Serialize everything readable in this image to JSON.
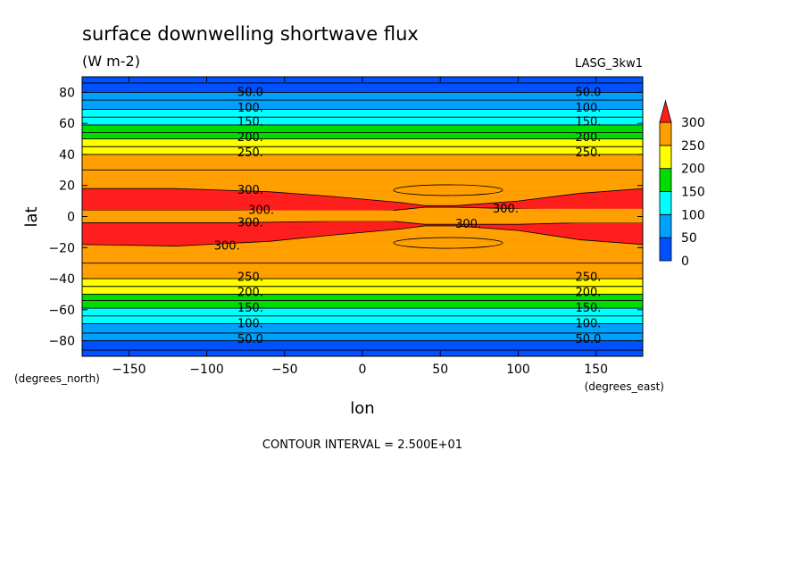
{
  "chart_data": {
    "type": "heatmap",
    "title": "surface downwelling shortwave flux",
    "units": "(W m-2)",
    "model_label": "LASG_3kw1",
    "xlabel": "lon",
    "ylabel": "lat",
    "x_units_label": "(degrees_east)",
    "y_units_label": "(degrees_north)",
    "xlim": [
      -180,
      180
    ],
    "ylim": [
      -90,
      90
    ],
    "x_ticks": [
      -150,
      -100,
      -50,
      0,
      50,
      100,
      150
    ],
    "y_ticks": [
      -80,
      -60,
      -40,
      -20,
      0,
      20,
      40,
      60,
      80
    ],
    "contour_interval_text": "CONTOUR INTERVAL = 2.500E+01",
    "colorbar": {
      "ticks": [
        "0",
        "50",
        "100",
        "150",
        "200",
        "250",
        "300"
      ],
      "extend": "max",
      "colors": [
        "#0050ff",
        "#00a0ff",
        "#00ffff",
        "#00dc00",
        "#ffff00",
        "#ffa000",
        "#ff1e1e"
      ]
    },
    "band_edges_north": [
      {
        "lat": 90,
        "value": 0
      },
      {
        "lat": 80,
        "value": 50
      },
      {
        "lat": 69,
        "value": 100
      },
      {
        "lat": 59,
        "value": 150
      },
      {
        "lat": 50,
        "value": 200
      },
      {
        "lat": 40,
        "value": 250
      },
      {
        "lat": 16,
        "value": 300
      }
    ],
    "band_edges_south": [
      {
        "lat": -90,
        "value": 0
      },
      {
        "lat": -80,
        "value": 50
      },
      {
        "lat": -69,
        "value": 100
      },
      {
        "lat": -59,
        "value": 150
      },
      {
        "lat": -50,
        "value": 200
      },
      {
        "lat": -40,
        "value": 250
      },
      {
        "lat": -16,
        "value": 300
      }
    ],
    "contour_labels": [
      {
        "text": "50.0",
        "lon": -72,
        "lat": 80
      },
      {
        "text": "100.",
        "lon": -72,
        "lat": 70
      },
      {
        "text": "150.",
        "lon": -72,
        "lat": 61
      },
      {
        "text": "200.",
        "lon": -72,
        "lat": 51
      },
      {
        "text": "250.",
        "lon": -72,
        "lat": 41
      },
      {
        "text": "300.",
        "lon": -72,
        "lat": 17
      },
      {
        "text": "300.",
        "lon": -65,
        "lat": 4
      },
      {
        "text": "300.",
        "lon": -72,
        "lat": -4
      },
      {
        "text": "300.",
        "lon": -87,
        "lat": -19
      },
      {
        "text": "250.",
        "lon": -72,
        "lat": -39
      },
      {
        "text": "200.",
        "lon": -72,
        "lat": -49
      },
      {
        "text": "150.",
        "lon": -72,
        "lat": -59
      },
      {
        "text": "100.",
        "lon": -72,
        "lat": -69
      },
      {
        "text": "50.0",
        "lon": -72,
        "lat": -79
      },
      {
        "text": "50.0",
        "lon": 145,
        "lat": 80
      },
      {
        "text": "100.",
        "lon": 145,
        "lat": 70
      },
      {
        "text": "150.",
        "lon": 145,
        "lat": 61
      },
      {
        "text": "200.",
        "lon": 145,
        "lat": 51
      },
      {
        "text": "250.",
        "lon": 145,
        "lat": 41
      },
      {
        "text": "300.",
        "lon": 92,
        "lat": 5
      },
      {
        "text": "300.",
        "lon": 68,
        "lat": -5
      },
      {
        "text": "250.",
        "lon": 145,
        "lat": -39
      },
      {
        "text": "200.",
        "lon": 145,
        "lat": -49
      },
      {
        "text": "150.",
        "lon": 145,
        "lat": -59
      },
      {
        "text": "100.",
        "lon": 145,
        "lat": -69
      },
      {
        "text": "50.0",
        "lon": 145,
        "lat": -79
      }
    ]
  }
}
